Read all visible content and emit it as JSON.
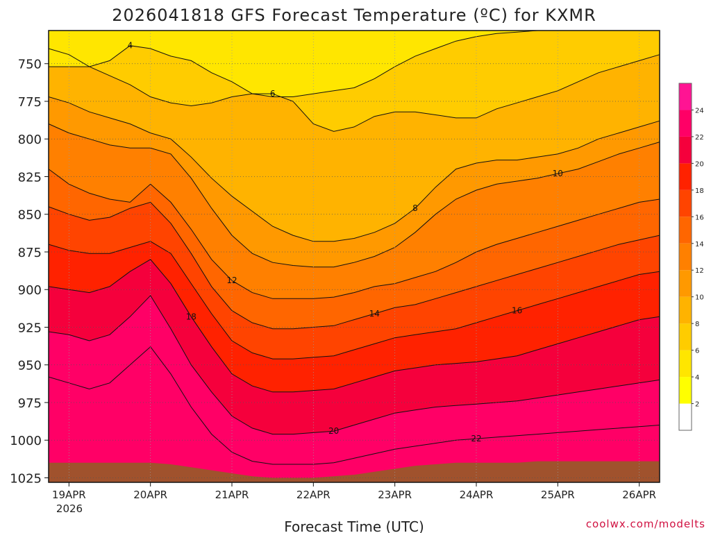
{
  "chart_data": {
    "type": "heatmap",
    "title": "2026041818 GFS Forecast Temperature (ºC) for KXMR",
    "xlabel": "Forecast Time (UTC)",
    "ylabel": "",
    "credit": "coolwx.com/modelts",
    "x_ticks": [
      "19APR",
      "20APR",
      "21APR",
      "22APR",
      "23APR",
      "24APR",
      "25APR",
      "26APR"
    ],
    "x_tick_hours": [
      6,
      30,
      54,
      78,
      102,
      126,
      150,
      174
    ],
    "x_year_label": "2026",
    "x_range_hours": [
      0,
      180
    ],
    "y_ticks": [
      750,
      775,
      800,
      825,
      850,
      875,
      900,
      925,
      950,
      975,
      1000,
      1025
    ],
    "y_range_hpa": [
      728,
      1028
    ],
    "colorbar": {
      "levels": [
        0,
        2,
        4,
        6,
        8,
        10,
        12,
        14,
        16,
        18,
        20,
        22,
        24,
        26
      ],
      "tick_labels": [
        "2",
        "4",
        "6",
        "8",
        "10",
        "12",
        "14",
        "16",
        "18",
        "20",
        "22",
        "24"
      ],
      "colors": [
        "#ffffff",
        "#ffff00",
        "#ffe600",
        "#ffcc00",
        "#ffb300",
        "#ff9900",
        "#ff8000",
        "#ff6600",
        "#ff4400",
        "#ff2200",
        "#f5003c",
        "#ff0066",
        "#ff1493"
      ]
    },
    "ground_color": "#a0522d",
    "series": [
      {
        "name": "4",
        "label": "4",
        "values": [
          752,
          752,
          752,
          748,
          738,
          740,
          745,
          748,
          756,
          762,
          770,
          772,
          772,
          770,
          768,
          766,
          760,
          752,
          745,
          740,
          735,
          732,
          730,
          729,
          728,
          728,
          728,
          728,
          728,
          728,
          728
        ]
      },
      {
        "name": "6",
        "label": "6",
        "values": [
          740,
          744,
          752,
          758,
          764,
          772,
          776,
          778,
          776,
          772,
          770,
          770,
          775,
          790,
          795,
          792,
          785,
          782,
          782,
          784,
          786,
          786,
          780,
          776,
          772,
          768,
          762,
          756,
          752,
          748,
          744
        ]
      },
      {
        "name": "8",
        "label": "8",
        "values": [
          772,
          776,
          782,
          786,
          790,
          796,
          800,
          812,
          826,
          838,
          848,
          858,
          864,
          868,
          868,
          866,
          862,
          856,
          846,
          832,
          820,
          816,
          814,
          814,
          812,
          810,
          806,
          800,
          796,
          792,
          788
        ]
      },
      {
        "name": "10",
        "label": "10",
        "values": [
          790,
          796,
          800,
          804,
          806,
          806,
          810,
          826,
          846,
          864,
          876,
          882,
          884,
          885,
          885,
          882,
          878,
          872,
          862,
          850,
          840,
          834,
          830,
          828,
          826,
          823,
          820,
          815,
          810,
          806,
          802
        ]
      },
      {
        "name": "12",
        "label": "12",
        "values": [
          820,
          830,
          836,
          840,
          842,
          830,
          842,
          860,
          880,
          894,
          902,
          906,
          906,
          906,
          905,
          902,
          898,
          896,
          892,
          888,
          882,
          875,
          870,
          866,
          862,
          858,
          854,
          850,
          846,
          842,
          840
        ]
      },
      {
        "name": "14",
        "label": "14",
        "values": [
          845,
          850,
          854,
          852,
          846,
          842,
          856,
          876,
          898,
          914,
          922,
          926,
          926,
          925,
          924,
          920,
          916,
          912,
          910,
          906,
          902,
          898,
          894,
          890,
          886,
          882,
          878,
          874,
          870,
          867,
          864
        ]
      },
      {
        "name": "16",
        "label": "16",
        "values": [
          870,
          874,
          876,
          876,
          872,
          868,
          876,
          896,
          916,
          934,
          942,
          946,
          946,
          945,
          944,
          940,
          936,
          932,
          930,
          928,
          926,
          922,
          918,
          914,
          910,
          906,
          902,
          898,
          894,
          890,
          888
        ]
      },
      {
        "name": "18",
        "label": "18",
        "values": [
          898,
          900,
          902,
          898,
          888,
          880,
          896,
          918,
          938,
          956,
          964,
          968,
          968,
          967,
          966,
          962,
          958,
          954,
          952,
          950,
          949,
          948,
          946,
          944,
          940,
          936,
          932,
          928,
          924,
          920,
          918
        ]
      },
      {
        "name": "20",
        "label": "20",
        "values": [
          928,
          930,
          934,
          930,
          918,
          904,
          926,
          950,
          968,
          984,
          992,
          996,
          996,
          995,
          994,
          990,
          986,
          982,
          980,
          978,
          977,
          976,
          975,
          974,
          972,
          970,
          968,
          966,
          964,
          962,
          960
        ]
      },
      {
        "name": "22",
        "label": "22",
        "values": [
          958,
          962,
          966,
          962,
          950,
          938,
          956,
          978,
          996,
          1008,
          1014,
          1016,
          1016,
          1016,
          1015,
          1012,
          1009,
          1006,
          1004,
          1002,
          1000,
          999,
          998,
          997,
          996,
          995,
          994,
          993,
          992,
          991,
          990
        ]
      }
    ],
    "ground": {
      "values": [
        1015,
        1015,
        1015,
        1015,
        1015,
        1015,
        1016,
        1018,
        1020,
        1022,
        1024,
        1025,
        1025,
        1025,
        1024,
        1023,
        1021,
        1019,
        1017,
        1016,
        1015,
        1015,
        1015,
        1015,
        1014,
        1014,
        1014,
        1014,
        1014,
        1014,
        1014
      ]
    }
  }
}
